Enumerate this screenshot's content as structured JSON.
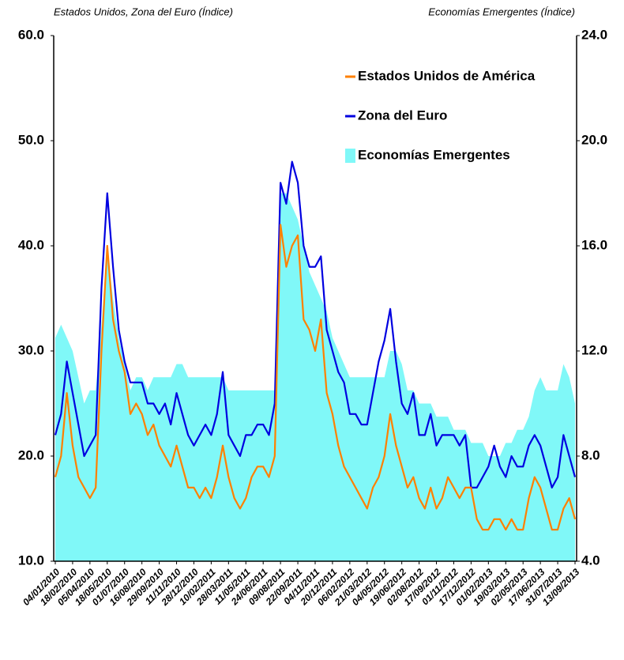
{
  "chart_data": {
    "type": "line",
    "y_axis_label": "Estados Unidos, Zona del Euro (Índice)",
    "y2_axis_label": "Economías Emergentes (Índice)",
    "categories": [
      "04/01/2010",
      null,
      null,
      "18/02/2010",
      null,
      null,
      "05/04/2010",
      null,
      null,
      "18/05/2010",
      null,
      null,
      "01/07/2010",
      null,
      null,
      "16/08/2010",
      null,
      null,
      "29/09/2010",
      null,
      null,
      "11/11/2010",
      null,
      null,
      "28/12/2010",
      null,
      null,
      "10/02/2011",
      null,
      null,
      "28/03/2011",
      null,
      null,
      "11/05/2011",
      null,
      null,
      "24/06/2011",
      null,
      null,
      "09/08/2011",
      null,
      null,
      "22/09/2011",
      null,
      null,
      "04/11/2011",
      null,
      null,
      "20/12/2011",
      null,
      null,
      "06/02/2012",
      null,
      null,
      "21/03/2012",
      null,
      null,
      "04/05/2012",
      null,
      null,
      "19/06/2012",
      null,
      null,
      "02/08/2012",
      null,
      null,
      "17/09/2012",
      null,
      null,
      "01/11/2012",
      null,
      null,
      "17/12/2012",
      null,
      null,
      "01/02/2013",
      null,
      null,
      "19/03/2013",
      null,
      null,
      "02/05/2013",
      null,
      null,
      "17/06/2013",
      null,
      null,
      "31/07/2013",
      null,
      null,
      "13/09/2013"
    ],
    "series": [
      {
        "name": "Economías Emergentes",
        "type": "area",
        "color": "#80f8f8",
        "axis": "y2",
        "values": [
          12.5,
          13,
          12.5,
          12,
          11,
          10,
          10.5,
          10.5,
          13,
          16,
          14,
          12.5,
          11.5,
          10.5,
          11,
          11,
          10.5,
          11,
          11,
          11,
          11,
          11.5,
          11.5,
          11,
          11,
          11,
          11,
          11,
          11,
          11,
          10.5,
          10.5,
          10.5,
          10.5,
          10.5,
          10.5,
          10.5,
          10.5,
          10.5,
          18,
          18,
          17.5,
          17,
          16,
          15,
          14.5,
          14,
          13.5,
          12.5,
          12,
          11.5,
          11,
          11,
          11,
          11,
          11,
          11,
          11,
          12,
          12,
          11.5,
          10.5,
          10.5,
          10,
          10,
          10,
          9.5,
          9.5,
          9.5,
          9,
          9,
          9,
          8.5,
          8.5,
          8.5,
          8,
          8,
          8,
          8.5,
          8.5,
          9,
          9,
          9.5,
          10.5,
          11,
          10.5,
          10.5,
          10.5,
          11.5,
          11,
          10
        ]
      },
      {
        "name": "Zona del Euro",
        "type": "line",
        "color": "#0000e0",
        "values": [
          22,
          24,
          29,
          26,
          23,
          20,
          21,
          22,
          36,
          45,
          38,
          32,
          29,
          27,
          27,
          27,
          25,
          25,
          24,
          25,
          23,
          26,
          24,
          22,
          21,
          22,
          23,
          22,
          24,
          28,
          22,
          21,
          20,
          22,
          22,
          23,
          23,
          22,
          25,
          46,
          44,
          48,
          46,
          40,
          38,
          38,
          39,
          32,
          30,
          28,
          27,
          24,
          24,
          23,
          23,
          26,
          29,
          31,
          34,
          29,
          25,
          24,
          26,
          22,
          22,
          24,
          21,
          22,
          22,
          22,
          21,
          22,
          17,
          17,
          18,
          19,
          21,
          19,
          18,
          20,
          19,
          19,
          21,
          22,
          21,
          19,
          17,
          18,
          22,
          20,
          18
        ]
      },
      {
        "name": "Estados Unidos de América",
        "type": "line",
        "color": "#ff8000",
        "values": [
          18,
          20,
          26,
          21,
          18,
          17,
          16,
          17,
          30,
          40,
          33,
          30,
          28,
          24,
          25,
          24,
          22,
          23,
          21,
          20,
          19,
          21,
          19,
          17,
          17,
          16,
          17,
          16,
          18,
          21,
          18,
          16,
          15,
          16,
          18,
          19,
          19,
          18,
          20,
          42,
          38,
          40,
          41,
          33,
          32,
          30,
          33,
          26,
          24,
          21,
          19,
          18,
          17,
          16,
          15,
          17,
          18,
          20,
          24,
          21,
          19,
          17,
          18,
          16,
          15,
          17,
          15,
          16,
          18,
          17,
          16,
          17,
          17,
          14,
          13,
          13,
          14,
          14,
          13,
          14,
          13,
          13,
          16,
          18,
          17,
          15,
          13,
          13,
          15,
          16,
          14
        ]
      }
    ],
    "legend_order": [
      2,
      1,
      0
    ],
    "ylim": [
      10,
      60
    ],
    "yticks": [
      {
        "value": 10,
        "label": "10.0"
      },
      {
        "value": 20,
        "label": "20.0"
      },
      {
        "value": 30,
        "label": "30.0"
      },
      {
        "value": 40,
        "label": "40.0"
      },
      {
        "value": 50,
        "label": "50.0"
      },
      {
        "value": 60,
        "label": "60.0"
      }
    ],
    "y2lim": [
      4,
      24
    ],
    "y2ticks": [
      {
        "value": 4,
        "label": "4.0"
      },
      {
        "value": 8,
        "label": "8.0"
      },
      {
        "value": 12,
        "label": "12.0"
      },
      {
        "value": 16,
        "label": "16.0"
      },
      {
        "value": 20,
        "label": "20.0"
      },
      {
        "value": 24,
        "label": "24.0"
      }
    ],
    "grid": false,
    "legend_position": "top-right"
  }
}
